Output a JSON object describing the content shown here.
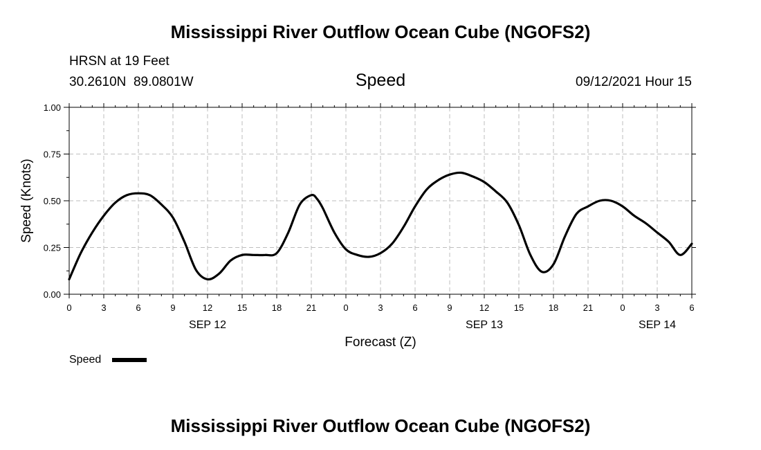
{
  "chart_data": {
    "type": "line",
    "title": "Mississippi River Outflow Ocean Cube (NGOFS2)",
    "footer_title": "Mississippi River Outflow Ocean Cube (NGOFS2)",
    "station": "HRSN at 19 Feet",
    "coordinates": "30.2610N  89.0801W",
    "variable": "Speed",
    "timestamp": "09/12/2021 Hour 15",
    "xlabel": "Forecast (Z)",
    "ylabel": "Speed (Knots)",
    "ylim": [
      0,
      1
    ],
    "xlim": [
      0,
      54
    ],
    "x_ticks": [
      0,
      3,
      6,
      9,
      12,
      15,
      18,
      21,
      24,
      27,
      30,
      33,
      36,
      39,
      42,
      45,
      48,
      51,
      54
    ],
    "x_tick_labels": [
      "0",
      "3",
      "6",
      "9",
      "12",
      "15",
      "18",
      "21",
      "0",
      "3",
      "6",
      "9",
      "12",
      "15",
      "18",
      "21",
      "0",
      "3",
      "6"
    ],
    "y_ticks": [
      0,
      0.25,
      0.5,
      0.75,
      1.0
    ],
    "y_tick_labels": [
      "0.00",
      "0.25",
      "0.50",
      "0.75",
      "1.00"
    ],
    "date_labels": [
      {
        "x": 12,
        "label": "SEP 12"
      },
      {
        "x": 36,
        "label": "SEP 13"
      },
      {
        "x": 51,
        "label": "SEP 14"
      }
    ],
    "grid": true,
    "legend": {
      "position": "bottom-left",
      "entries": [
        "Speed"
      ]
    },
    "series": [
      {
        "name": "Speed",
        "color": "#000000",
        "x": [
          0,
          1,
          2,
          3,
          4,
          5,
          6,
          7,
          8,
          9,
          10,
          11,
          12,
          13,
          14,
          15,
          16,
          17,
          18,
          19,
          20,
          21,
          21.5,
          22,
          23,
          24,
          25,
          26,
          27,
          28,
          29,
          30,
          31,
          32,
          33,
          34,
          35,
          36,
          37,
          38,
          39,
          40,
          41,
          42,
          43,
          44,
          45,
          46,
          47,
          48,
          49,
          50,
          51,
          52,
          53,
          54
        ],
        "values": [
          0.08,
          0.22,
          0.33,
          0.42,
          0.49,
          0.53,
          0.54,
          0.53,
          0.48,
          0.41,
          0.28,
          0.13,
          0.08,
          0.11,
          0.18,
          0.21,
          0.21,
          0.21,
          0.22,
          0.33,
          0.48,
          0.53,
          0.51,
          0.46,
          0.33,
          0.24,
          0.21,
          0.2,
          0.22,
          0.27,
          0.36,
          0.47,
          0.56,
          0.61,
          0.64,
          0.65,
          0.63,
          0.6,
          0.55,
          0.49,
          0.37,
          0.21,
          0.12,
          0.16,
          0.31,
          0.43,
          0.47,
          0.5,
          0.5,
          0.47,
          0.42,
          0.38,
          0.33,
          0.28,
          0.21,
          0.27
        ]
      }
    ]
  }
}
